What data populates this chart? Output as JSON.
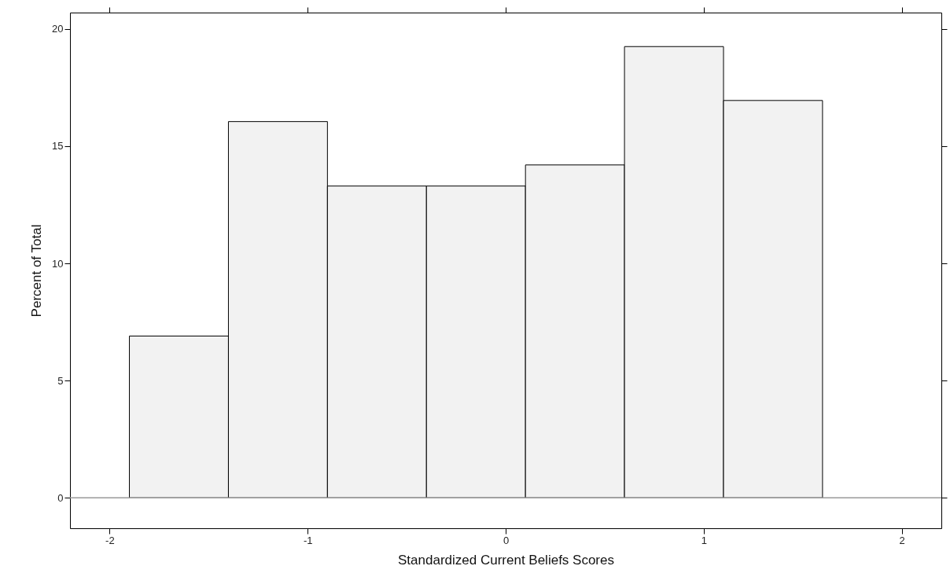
{
  "chart_data": {
    "type": "histogram",
    "xlabel": "Standardized Current Beliefs Scores",
    "ylabel": "Percent of Total",
    "bins": [
      -1.9,
      -1.4,
      -0.9,
      -0.4,
      0.1,
      0.6,
      1.1,
      1.6
    ],
    "values": [
      6.9,
      16.05,
      13.3,
      13.3,
      14.2,
      19.25,
      16.95
    ],
    "color": "#f2f2f2",
    "xlim": [
      -2.2,
      2.2
    ],
    "xticks": [
      -2,
      -1,
      0,
      1,
      2
    ],
    "ylim": [
      -1.3,
      20.7
    ],
    "yticks": [
      0,
      5,
      10,
      15,
      20
    ],
    "ref_lines": [
      {
        "axis": "y",
        "value": 0,
        "color": "#999999"
      }
    ],
    "grid": false,
    "tick_labels": "xy"
  }
}
